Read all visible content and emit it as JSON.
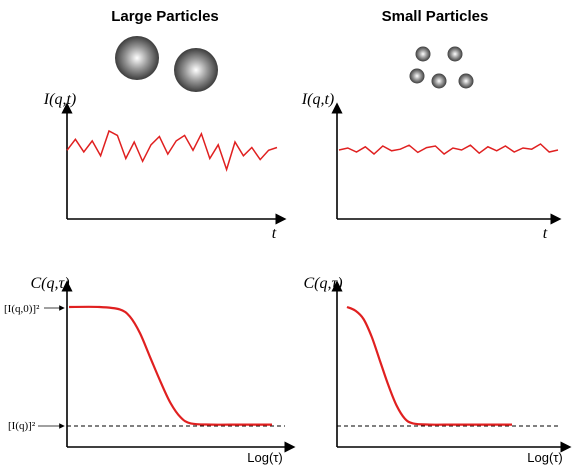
{
  "panels": {
    "large_title": "Large Particles",
    "small_title": "Small Particles"
  },
  "intensity_plots": {
    "ylabel": "I(q,t)",
    "xlabel": "t",
    "color": "#e02020"
  },
  "correlation_plots": {
    "ylabel": "C(q,τ)",
    "xlabel": "Log(τ)",
    "color": "#e02020",
    "y_top_label": "[I(q,0)]²",
    "y_bottom_label": "[I(q)]²"
  },
  "chart_data": [
    {
      "type": "line",
      "panel": "large_particles_intensity",
      "x": [
        0,
        0.04,
        0.08,
        0.12,
        0.16,
        0.2,
        0.24,
        0.28,
        0.32,
        0.36,
        0.4,
        0.44,
        0.48,
        0.52,
        0.56,
        0.6,
        0.64,
        0.68,
        0.72,
        0.76,
        0.8,
        0.84,
        0.88,
        0.92,
        0.96,
        1.0
      ],
      "y": [
        0.45,
        0.65,
        0.42,
        0.62,
        0.35,
        0.8,
        0.72,
        0.3,
        0.6,
        0.25,
        0.55,
        0.7,
        0.38,
        0.62,
        0.72,
        0.45,
        0.75,
        0.3,
        0.55,
        0.1,
        0.6,
        0.35,
        0.5,
        0.28,
        0.45,
        0.5
      ],
      "xlabel": "t",
      "ylabel": "I(q,t)"
    },
    {
      "type": "line",
      "panel": "small_particles_intensity",
      "x": [
        0,
        0.04,
        0.08,
        0.12,
        0.16,
        0.2,
        0.24,
        0.28,
        0.32,
        0.36,
        0.4,
        0.44,
        0.48,
        0.52,
        0.56,
        0.6,
        0.64,
        0.68,
        0.72,
        0.76,
        0.8,
        0.84,
        0.88,
        0.92,
        0.96,
        1.0
      ],
      "y": [
        0.5,
        0.55,
        0.45,
        0.58,
        0.4,
        0.6,
        0.48,
        0.52,
        0.62,
        0.44,
        0.56,
        0.6,
        0.4,
        0.55,
        0.5,
        0.62,
        0.42,
        0.58,
        0.48,
        0.6,
        0.45,
        0.55,
        0.52,
        0.65,
        0.45,
        0.5
      ],
      "xlabel": "t",
      "ylabel": "I(q,t)"
    },
    {
      "type": "line",
      "panel": "large_particles_correlation",
      "x": [
        0,
        0.15,
        0.25,
        0.3,
        0.35,
        0.4,
        0.45,
        0.5,
        0.55,
        0.6,
        0.7,
        0.85,
        1.0
      ],
      "y": [
        1.0,
        1.0,
        0.98,
        0.92,
        0.78,
        0.58,
        0.38,
        0.2,
        0.08,
        0.03,
        0.02,
        0.02,
        0.02
      ],
      "xlabel": "Log(τ)",
      "ylabel": "C(q,τ)"
    },
    {
      "type": "line",
      "panel": "small_particles_correlation",
      "x": [
        0,
        0.05,
        0.1,
        0.15,
        0.2,
        0.25,
        0.3,
        0.35,
        0.4,
        0.5,
        0.65,
        0.85,
        1.0
      ],
      "y": [
        1.0,
        0.97,
        0.9,
        0.75,
        0.55,
        0.35,
        0.18,
        0.07,
        0.03,
        0.02,
        0.02,
        0.02,
        0.02
      ],
      "xlabel": "Log(τ)",
      "ylabel": "C(q,τ)"
    }
  ]
}
